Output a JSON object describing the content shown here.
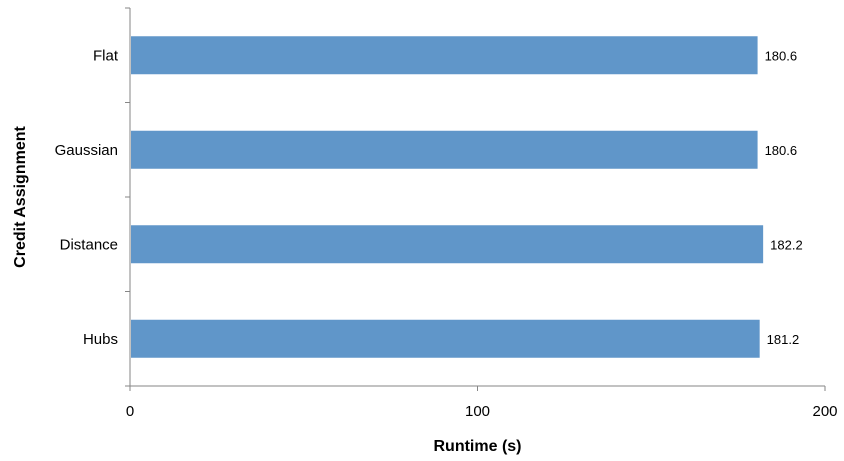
{
  "chart_data": {
    "type": "bar",
    "orientation": "horizontal",
    "categories": [
      "Flat",
      "Gaussian",
      "Distance",
      "Hubs"
    ],
    "values": [
      180.6,
      180.6,
      182.2,
      181.2
    ],
    "data_labels": [
      "180.6",
      "180.6",
      "182.2",
      "181.2"
    ],
    "x_ticks": [
      "0",
      "100",
      "200"
    ],
    "xlabel": "Runtime (s)",
    "ylabel": "Credit Assignment",
    "xlim": [
      0,
      200
    ],
    "grid": false,
    "legend": "none",
    "bar_color": "#6096C9"
  }
}
